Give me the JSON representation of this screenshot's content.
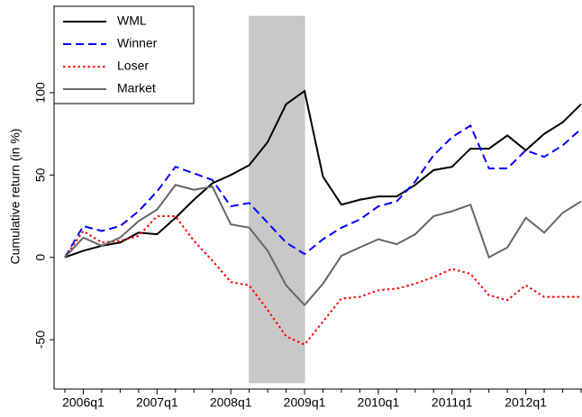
{
  "chart_data": {
    "type": "line",
    "y_label": "Cumulative return (in %)",
    "categories": [
      null,
      "2006q1",
      null,
      null,
      null,
      "2007q1",
      null,
      null,
      null,
      "2008q1",
      null,
      null,
      null,
      "2009q1",
      null,
      null,
      null,
      "2010q1",
      null,
      null,
      null,
      "2011q1",
      null,
      null,
      null,
      "2012q1",
      null,
      null,
      null
    ],
    "series": [
      {
        "name": "WML",
        "color": "#000000",
        "style": "solid",
        "values": [
          0,
          4,
          7,
          9,
          15,
          14,
          24,
          35,
          45,
          50,
          56,
          70,
          93,
          101,
          49,
          32,
          35,
          37,
          37,
          44,
          53,
          55,
          66,
          66,
          74,
          65,
          75,
          82,
          93
        ]
      },
      {
        "name": "Winner",
        "color": "#0000ff",
        "style": "dashed",
        "values": [
          0,
          19,
          16,
          19,
          28,
          40,
          55,
          51,
          47,
          31,
          33,
          21,
          9,
          2,
          11,
          18,
          23,
          31,
          34,
          46,
          62,
          73,
          80,
          54,
          54,
          65,
          61,
          68,
          78
        ]
      },
      {
        "name": "Loser",
        "color": "#ff0000",
        "style": "dotted",
        "values": [
          0,
          16,
          9,
          10,
          13,
          25,
          25,
          10,
          -2,
          -15,
          -17,
          -32,
          -48,
          -53,
          -39,
          -25,
          -24,
          -20,
          -19,
          -16,
          -12,
          -7,
          -10,
          -23,
          -26,
          -17,
          -24,
          -24,
          -24
        ]
      },
      {
        "name": "Market",
        "color": "#666666",
        "style": "solid",
        "values": [
          0,
          12,
          7,
          12,
          22,
          29,
          44,
          41,
          43,
          20,
          18,
          4,
          -17,
          -29,
          -16,
          1,
          6,
          11,
          8,
          14,
          25,
          28,
          32,
          0,
          6,
          24,
          15,
          27,
          34
        ]
      }
    ],
    "shaded_range": [
      10,
      13
    ],
    "shade_color": "#c8c8c8",
    "ylim": [
      -80,
      153
    ],
    "yticks": [
      -50,
      0,
      50,
      100
    ],
    "legend": "top-left"
  }
}
